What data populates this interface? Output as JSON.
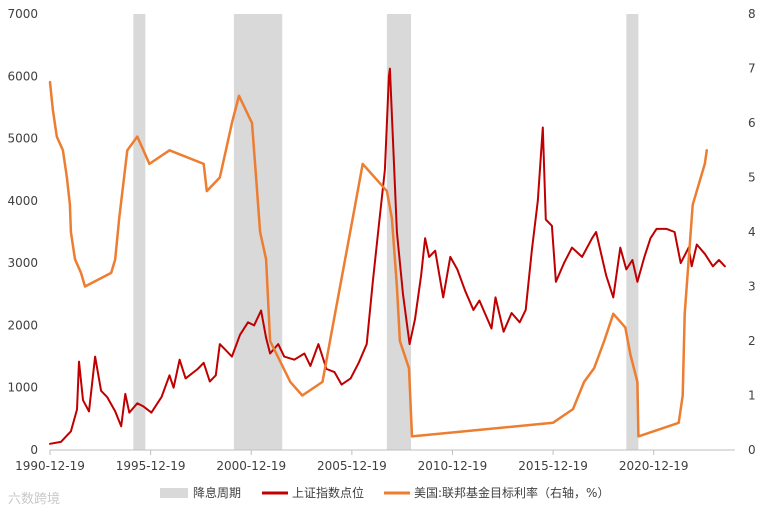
{
  "chart_data": {
    "type": "line",
    "title": "",
    "x_tick_labels": [
      "1990-12-19",
      "1995-12-19",
      "2000-12-19",
      "2005-12-19",
      "2010-12-19",
      "2015-12-19",
      "2020-12-19"
    ],
    "x_range_years": [
      1990.96,
      2025.0
    ],
    "y_left": {
      "range": [
        0,
        7000
      ],
      "ticks": [
        0,
        1000,
        2000,
        3000,
        4000,
        5000,
        6000,
        7000
      ]
    },
    "y_right": {
      "range": [
        0,
        8
      ],
      "ticks": [
        0,
        1,
        2,
        3,
        4,
        5,
        6,
        7,
        8
      ]
    },
    "shaded_periods": {
      "name": "降息周期",
      "color": "#d9d9d9",
      "ranges": [
        [
          1995.1,
          1995.7
        ],
        [
          2000.1,
          2002.5
        ],
        [
          2007.7,
          2008.9
        ],
        [
          2019.6,
          2020.2
        ]
      ]
    },
    "series": [
      {
        "name": "上证指数点位",
        "axis": "left",
        "color": "#c00000",
        "points": [
          [
            1990.96,
            100
          ],
          [
            1991.5,
            130
          ],
          [
            1992.0,
            300
          ],
          [
            1992.3,
            650
          ],
          [
            1992.4,
            1420
          ],
          [
            1992.6,
            800
          ],
          [
            1992.9,
            620
          ],
          [
            1993.2,
            1500
          ],
          [
            1993.5,
            950
          ],
          [
            1993.8,
            850
          ],
          [
            1994.2,
            620
          ],
          [
            1994.5,
            380
          ],
          [
            1994.7,
            900
          ],
          [
            1994.9,
            600
          ],
          [
            1995.3,
            750
          ],
          [
            1995.6,
            700
          ],
          [
            1996.0,
            600
          ],
          [
            1996.5,
            850
          ],
          [
            1996.9,
            1200
          ],
          [
            1997.1,
            1000
          ],
          [
            1997.4,
            1450
          ],
          [
            1997.7,
            1150
          ],
          [
            1998.3,
            1300
          ],
          [
            1998.6,
            1400
          ],
          [
            1998.9,
            1100
          ],
          [
            1999.2,
            1200
          ],
          [
            1999.4,
            1700
          ],
          [
            1999.7,
            1600
          ],
          [
            2000.0,
            1500
          ],
          [
            2000.4,
            1850
          ],
          [
            2000.8,
            2050
          ],
          [
            2001.1,
            2000
          ],
          [
            2001.45,
            2240
          ],
          [
            2001.7,
            1800
          ],
          [
            2001.9,
            1550
          ],
          [
            2002.3,
            1700
          ],
          [
            2002.6,
            1500
          ],
          [
            2003.1,
            1450
          ],
          [
            2003.6,
            1550
          ],
          [
            2003.9,
            1350
          ],
          [
            2004.3,
            1700
          ],
          [
            2004.7,
            1300
          ],
          [
            2005.1,
            1250
          ],
          [
            2005.45,
            1050
          ],
          [
            2005.9,
            1150
          ],
          [
            2006.3,
            1400
          ],
          [
            2006.7,
            1700
          ],
          [
            2007.0,
            2700
          ],
          [
            2007.3,
            3600
          ],
          [
            2007.6,
            4500
          ],
          [
            2007.8,
            6000
          ],
          [
            2007.85,
            6124
          ],
          [
            2008.0,
            5000
          ],
          [
            2008.2,
            3500
          ],
          [
            2008.5,
            2500
          ],
          [
            2008.83,
            1700
          ],
          [
            2009.1,
            2100
          ],
          [
            2009.4,
            2800
          ],
          [
            2009.6,
            3400
          ],
          [
            2009.8,
            3100
          ],
          [
            2010.1,
            3200
          ],
          [
            2010.5,
            2450
          ],
          [
            2010.85,
            3100
          ],
          [
            2011.2,
            2900
          ],
          [
            2011.6,
            2550
          ],
          [
            2012.0,
            2250
          ],
          [
            2012.3,
            2400
          ],
          [
            2012.9,
            1950
          ],
          [
            2013.1,
            2450
          ],
          [
            2013.5,
            1900
          ],
          [
            2013.9,
            2200
          ],
          [
            2014.3,
            2050
          ],
          [
            2014.6,
            2250
          ],
          [
            2014.9,
            3200
          ],
          [
            2015.2,
            4000
          ],
          [
            2015.45,
            5178
          ],
          [
            2015.6,
            3700
          ],
          [
            2015.9,
            3600
          ],
          [
            2016.1,
            2700
          ],
          [
            2016.5,
            3000
          ],
          [
            2016.9,
            3250
          ],
          [
            2017.4,
            3100
          ],
          [
            2017.9,
            3400
          ],
          [
            2018.1,
            3500
          ],
          [
            2018.6,
            2800
          ],
          [
            2018.95,
            2450
          ],
          [
            2019.3,
            3250
          ],
          [
            2019.6,
            2900
          ],
          [
            2019.9,
            3050
          ],
          [
            2020.15,
            2700
          ],
          [
            2020.5,
            3100
          ],
          [
            2020.8,
            3400
          ],
          [
            2021.1,
            3550
          ],
          [
            2021.6,
            3550
          ],
          [
            2022.0,
            3500
          ],
          [
            2022.3,
            3000
          ],
          [
            2022.7,
            3250
          ],
          [
            2022.85,
            2950
          ],
          [
            2023.1,
            3300
          ],
          [
            2023.5,
            3150
          ],
          [
            2023.9,
            2950
          ],
          [
            2024.2,
            3050
          ],
          [
            2024.5,
            2950
          ]
        ]
      },
      {
        "name": "美国:联邦基金目标利率（右轴，%）",
        "axis": "right",
        "color": "#ed7d31",
        "points": [
          [
            1990.96,
            6.75
          ],
          [
            1991.1,
            6.25
          ],
          [
            1991.3,
            5.75
          ],
          [
            1991.6,
            5.5
          ],
          [
            1991.8,
            5.0
          ],
          [
            1991.95,
            4.5
          ],
          [
            1992.0,
            4.0
          ],
          [
            1992.2,
            3.5
          ],
          [
            1992.5,
            3.25
          ],
          [
            1992.7,
            3.0
          ],
          [
            1994.0,
            3.25
          ],
          [
            1994.2,
            3.5
          ],
          [
            1994.4,
            4.25
          ],
          [
            1994.8,
            5.5
          ],
          [
            1995.3,
            5.75
          ],
          [
            1995.6,
            5.5
          ],
          [
            1995.9,
            5.25
          ],
          [
            1996.9,
            5.5
          ],
          [
            1998.6,
            5.25
          ],
          [
            1998.75,
            4.75
          ],
          [
            1999.4,
            5.0
          ],
          [
            1999.7,
            5.5
          ],
          [
            2000.0,
            6.0
          ],
          [
            2000.35,
            6.5
          ],
          [
            2001.0,
            6.0
          ],
          [
            2001.2,
            5.0
          ],
          [
            2001.4,
            4.0
          ],
          [
            2001.7,
            3.5
          ],
          [
            2001.9,
            2.0
          ],
          [
            2002.9,
            1.25
          ],
          [
            2003.5,
            1.0
          ],
          [
            2004.5,
            1.25
          ],
          [
            2005.0,
            2.25
          ],
          [
            2005.5,
            3.25
          ],
          [
            2006.0,
            4.25
          ],
          [
            2006.5,
            5.25
          ],
          [
            2007.7,
            4.75
          ],
          [
            2007.95,
            4.25
          ],
          [
            2008.2,
            3.0
          ],
          [
            2008.35,
            2.0
          ],
          [
            2008.8,
            1.5
          ],
          [
            2008.95,
            0.25
          ],
          [
            2015.95,
            0.5
          ],
          [
            2016.95,
            0.75
          ],
          [
            2017.5,
            1.25
          ],
          [
            2018.0,
            1.5
          ],
          [
            2018.5,
            2.0
          ],
          [
            2018.95,
            2.5
          ],
          [
            2019.55,
            2.25
          ],
          [
            2019.8,
            1.75
          ],
          [
            2020.15,
            1.25
          ],
          [
            2020.2,
            0.25
          ],
          [
            2022.2,
            0.5
          ],
          [
            2022.4,
            1.0
          ],
          [
            2022.5,
            2.5
          ],
          [
            2022.9,
            4.5
          ],
          [
            2023.5,
            5.25
          ],
          [
            2023.6,
            5.5
          ]
        ]
      }
    ],
    "legend": {
      "position": "bottom",
      "items": [
        "降息周期",
        "上证指数点位",
        "美国:联邦基金目标利率（右轴，%）"
      ]
    }
  },
  "watermark": "六数跨境"
}
